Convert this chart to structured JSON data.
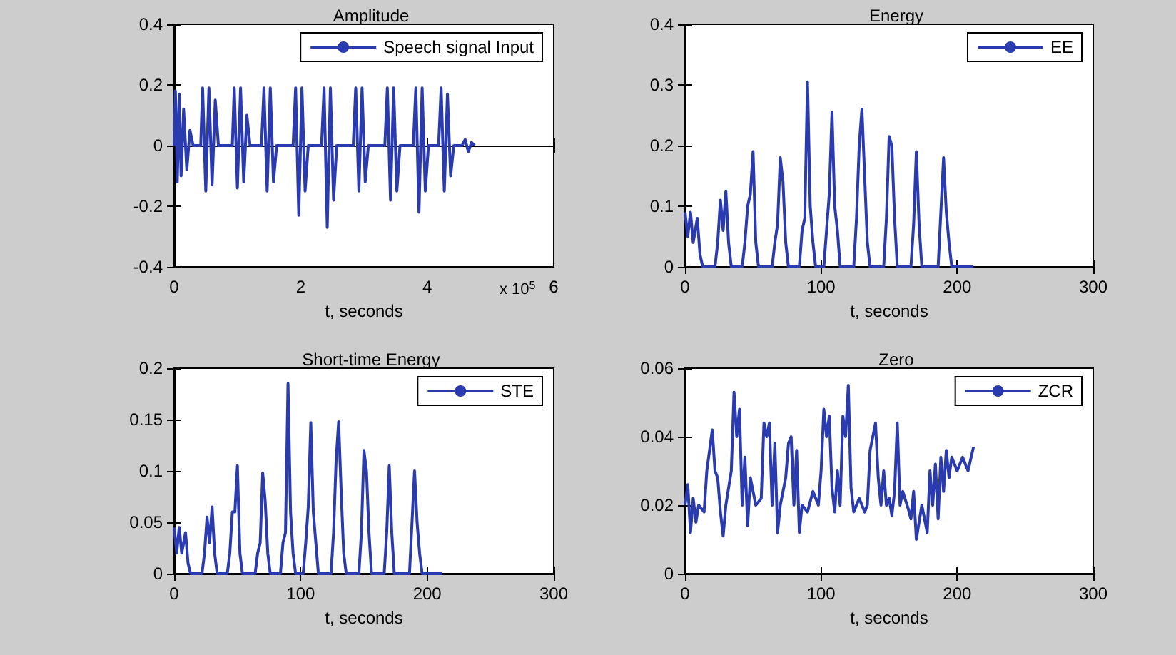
{
  "chart_data": [
    {
      "type": "line",
      "title": "Amplitude",
      "xlabel": "t, seconds",
      "annotations": [
        "x 10$^{5}$"
      ],
      "legend": "top right",
      "xlim": [
        0,
        6
      ],
      "xticks": [
        0,
        2,
        4,
        6
      ],
      "ylim": [
        -0.4,
        0.4
      ],
      "yticks": [
        -0.4,
        -0.2,
        0,
        0.2,
        0.4
      ],
      "x": [
        0,
        0.02,
        0.05,
        0.08,
        0.11,
        0.15,
        0.2,
        0.25,
        0.3,
        0.42,
        0.45,
        0.5,
        0.55,
        0.6,
        0.65,
        0.7,
        0.92,
        0.95,
        1.0,
        1.05,
        1.1,
        1.15,
        1.2,
        1.38,
        1.42,
        1.47,
        1.52,
        1.57,
        1.62,
        1.88,
        1.92,
        1.97,
        2.02,
        2.07,
        2.12,
        2.33,
        2.37,
        2.42,
        2.47,
        2.52,
        2.57,
        2.83,
        2.87,
        2.92,
        2.97,
        3.02,
        3.07,
        3.33,
        3.37,
        3.42,
        3.47,
        3.52,
        3.57,
        3.78,
        3.82,
        3.87,
        3.92,
        3.97,
        4.02,
        4.18,
        4.22,
        4.27,
        4.32,
        4.37,
        4.42,
        4.55,
        4.6,
        4.65,
        4.7,
        4.75
      ],
      "series": [
        {
          "name": "Speech signal Input",
          "color": "#2a3bb0",
          "values": [
            0,
            0.18,
            -0.12,
            0.17,
            -0.1,
            0.12,
            -0.08,
            0.05,
            0,
            0,
            0.19,
            -0.15,
            0.19,
            -0.13,
            0.15,
            0,
            0,
            0.19,
            -0.14,
            0.19,
            -0.12,
            0.1,
            0,
            0,
            0.19,
            -0.15,
            0.19,
            -0.12,
            0,
            0,
            0.19,
            -0.23,
            0.19,
            -0.15,
            0,
            0,
            0.19,
            -0.27,
            0.19,
            -0.18,
            0,
            0,
            0.19,
            -0.15,
            0.19,
            -0.12,
            0,
            0,
            0.19,
            -0.18,
            0.19,
            -0.15,
            0,
            0,
            0.19,
            -0.22,
            0.19,
            -0.15,
            0,
            0,
            0.19,
            -0.15,
            0.17,
            -0.1,
            0,
            0,
            0.02,
            -0.02,
            0.01,
            0
          ]
        }
      ]
    },
    {
      "type": "line",
      "title": "Energy",
      "xlabel": "t, seconds",
      "legend": "top right",
      "xlim": [
        0,
        300
      ],
      "xticks": [
        0,
        100,
        200,
        300
      ],
      "ylim": [
        0,
        0.4
      ],
      "yticks": [
        0,
        0.1,
        0.2,
        0.3,
        0.4
      ],
      "x": [
        0,
        2,
        4,
        6,
        9,
        11,
        13,
        22,
        24,
        26,
        28,
        30,
        32,
        34,
        42,
        44,
        46,
        48,
        50,
        52,
        54,
        64,
        66,
        68,
        70,
        72,
        74,
        76,
        84,
        86,
        88,
        90,
        92,
        94,
        96,
        102,
        104,
        106,
        108,
        110,
        112,
        114,
        124,
        126,
        128,
        130,
        132,
        134,
        136,
        146,
        148,
        150,
        152,
        154,
        156,
        166,
        168,
        170,
        172,
        174,
        186,
        188,
        190,
        192,
        194,
        196,
        212
      ],
      "series": [
        {
          "name": "EE",
          "color": "#2a3bb0",
          "values": [
            0.09,
            0.05,
            0.09,
            0.04,
            0.08,
            0.02,
            0,
            0,
            0.04,
            0.11,
            0.06,
            0.125,
            0.04,
            0,
            0,
            0.04,
            0.1,
            0.12,
            0.19,
            0.04,
            0,
            0,
            0.04,
            0.07,
            0.18,
            0.14,
            0.04,
            0,
            0,
            0.06,
            0.08,
            0.305,
            0.1,
            0.04,
            0,
            0,
            0.06,
            0.12,
            0.255,
            0.1,
            0.06,
            0,
            0,
            0.08,
            0.2,
            0.26,
            0.15,
            0.04,
            0,
            0,
            0.08,
            0.215,
            0.2,
            0.08,
            0,
            0,
            0.07,
            0.19,
            0.07,
            0,
            0,
            0.09,
            0.18,
            0.09,
            0.04,
            0,
            0
          ]
        }
      ]
    },
    {
      "type": "line",
      "title": "Short-time Energy",
      "xlabel": "t, seconds",
      "legend": "top right",
      "xlim": [
        0,
        300
      ],
      "xticks": [
        0,
        100,
        200,
        300
      ],
      "ylim": [
        0,
        0.2
      ],
      "yticks": [
        0,
        0.05,
        0.1,
        0.15,
        0.2
      ],
      "x": [
        0,
        2,
        4,
        6,
        9,
        11,
        13,
        22,
        24,
        26,
        28,
        30,
        32,
        34,
        42,
        44,
        46,
        48,
        50,
        52,
        54,
        64,
        66,
        68,
        70,
        72,
        74,
        76,
        84,
        86,
        88,
        90,
        92,
        94,
        96,
        102,
        104,
        106,
        108,
        110,
        112,
        114,
        124,
        126,
        128,
        130,
        132,
        134,
        136,
        146,
        148,
        150,
        152,
        154,
        156,
        166,
        168,
        170,
        172,
        174,
        186,
        188,
        190,
        192,
        194,
        196,
        212
      ],
      "series": [
        {
          "name": "STE",
          "color": "#2a3bb0",
          "values": [
            0.045,
            0.02,
            0.045,
            0.02,
            0.04,
            0.01,
            0,
            0,
            0.02,
            0.055,
            0.03,
            0.065,
            0.02,
            0,
            0,
            0.02,
            0.06,
            0.06,
            0.105,
            0.02,
            0,
            0,
            0.02,
            0.03,
            0.098,
            0.07,
            0.02,
            0,
            0,
            0.03,
            0.04,
            0.185,
            0.06,
            0.02,
            0,
            0,
            0.03,
            0.065,
            0.147,
            0.06,
            0.03,
            0,
            0,
            0.04,
            0.11,
            0.148,
            0.08,
            0.02,
            0,
            0,
            0.04,
            0.12,
            0.1,
            0.04,
            0,
            0,
            0.04,
            0.105,
            0.04,
            0,
            0,
            0.05,
            0.1,
            0.05,
            0.02,
            0,
            0
          ]
        }
      ]
    },
    {
      "type": "line",
      "title": "Zero",
      "xlabel": "t, seconds",
      "legend": "top right",
      "xlim": [
        0,
        300
      ],
      "xticks": [
        0,
        100,
        200,
        300
      ],
      "ylim": [
        0,
        0.06
      ],
      "yticks": [
        0,
        0.02,
        0.04,
        0.06
      ],
      "x": [
        0,
        2,
        4,
        6,
        8,
        10,
        14,
        16,
        18,
        20,
        22,
        24,
        26,
        28,
        30,
        34,
        36,
        38,
        40,
        42,
        44,
        46,
        48,
        52,
        56,
        58,
        60,
        62,
        64,
        66,
        68,
        70,
        74,
        76,
        78,
        80,
        82,
        84,
        86,
        90,
        94,
        98,
        100,
        102,
        104,
        106,
        108,
        110,
        112,
        114,
        116,
        118,
        120,
        122,
        124,
        128,
        132,
        134,
        136,
        138,
        140,
        142,
        144,
        146,
        148,
        150,
        152,
        154,
        156,
        158,
        160,
        164,
        166,
        168,
        170,
        174,
        176,
        178,
        180,
        182,
        184,
        186,
        188,
        190,
        192,
        194,
        196,
        200,
        204,
        208,
        212
      ],
      "series": [
        {
          "name": "ZCR",
          "color": "#2a3bb0",
          "values": [
            0.02,
            0.026,
            0.012,
            0.022,
            0.015,
            0.02,
            0.018,
            0.03,
            0.036,
            0.042,
            0.03,
            0.028,
            0.018,
            0.011,
            0.02,
            0.03,
            0.053,
            0.04,
            0.048,
            0.02,
            0.034,
            0.014,
            0.028,
            0.02,
            0.022,
            0.044,
            0.04,
            0.044,
            0.02,
            0.038,
            0.012,
            0.02,
            0.028,
            0.038,
            0.04,
            0.02,
            0.036,
            0.012,
            0.02,
            0.018,
            0.024,
            0.02,
            0.03,
            0.048,
            0.04,
            0.046,
            0.025,
            0.018,
            0.03,
            0.02,
            0.046,
            0.04,
            0.055,
            0.025,
            0.018,
            0.022,
            0.018,
            0.02,
            0.036,
            0.04,
            0.044,
            0.028,
            0.02,
            0.03,
            0.02,
            0.022,
            0.017,
            0.024,
            0.044,
            0.02,
            0.024,
            0.019,
            0.016,
            0.024,
            0.01,
            0.02,
            0.016,
            0.012,
            0.03,
            0.02,
            0.032,
            0.016,
            0.034,
            0.024,
            0.036,
            0.028,
            0.034,
            0.03,
            0.034,
            0.03,
            0.037
          ]
        }
      ]
    }
  ]
}
